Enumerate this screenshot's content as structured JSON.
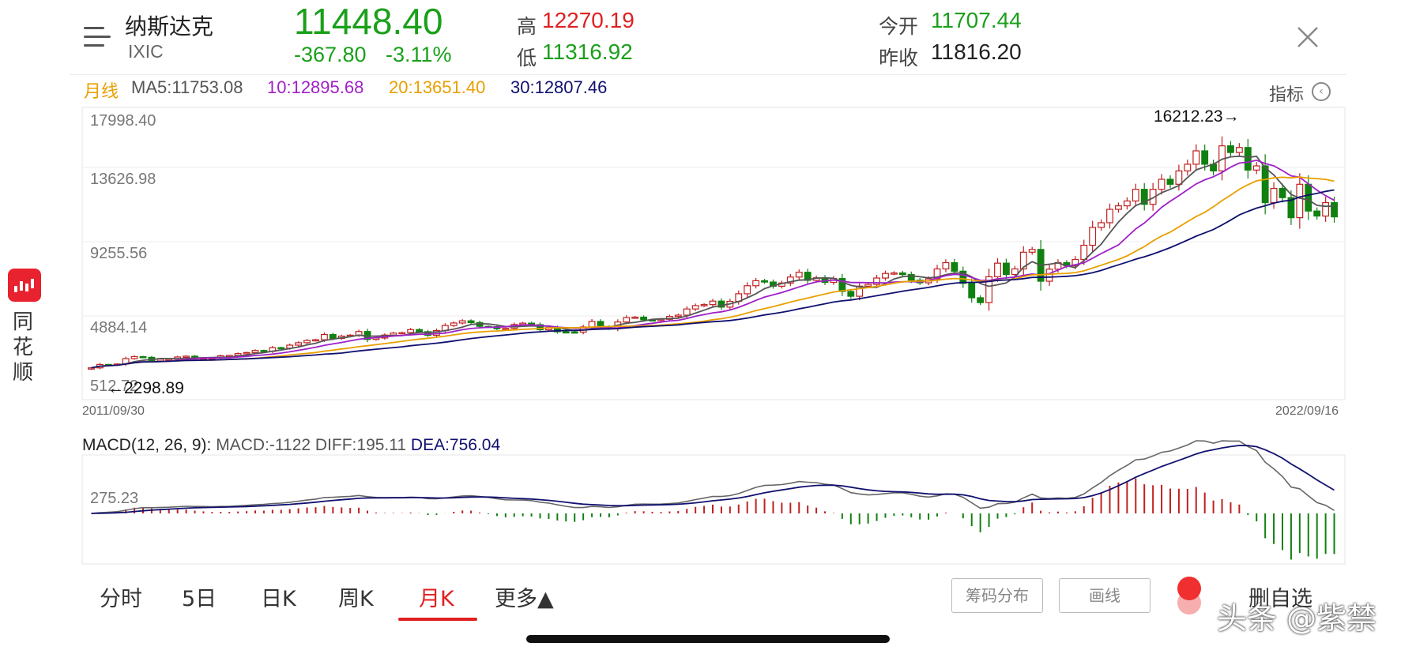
{
  "header": {
    "name": "纳斯达克",
    "code": "IXIC",
    "price": "11448.40",
    "change": "-367.80",
    "change_pct": "-3.11%",
    "high_label": "高",
    "high": "12270.19",
    "low_label": "低",
    "low": "11316.92",
    "open_label": "今开",
    "open": "11707.44",
    "prev_close_label": "昨收",
    "prev_close": "11816.20"
  },
  "ma_row": {
    "period": "月线",
    "ma5": "MA5:11753.08",
    "ma10": "10:12895.68",
    "ma20": "20:13651.40",
    "ma30": "30:12807.46",
    "indicator_label": "指标"
  },
  "app": {
    "name_chars": [
      "同",
      "花",
      "顺"
    ]
  },
  "chart_data": {
    "type": "candlestick",
    "period": "monthly",
    "y_ticks": [
      "17998.40",
      "13626.98",
      "9255.56",
      "4884.14",
      "512.72"
    ],
    "start_date": "2011/09/30",
    "end_date": "2022/09/16",
    "high_marker": "16212.23→",
    "low_marker": "←2298.89",
    "ylim": [
      512.72,
      17998.4
    ],
    "closes": [
      2415,
      2620,
      2605,
      2645,
      2970,
      3090,
      3045,
      2830,
      2935,
      2940,
      3065,
      3115,
      2975,
      3010,
      3020,
      3140,
      3160,
      3270,
      3330,
      3455,
      3400,
      3625,
      3590,
      3775,
      3920,
      4055,
      4100,
      4410,
      4175,
      4315,
      4370,
      4590,
      4115,
      4200,
      4380,
      4495,
      4525,
      4705,
      4580,
      4365,
      4645,
      4950,
      5100,
      5230,
      5125,
      4900,
      4880,
      4755,
      4780,
      5010,
      5090,
      5000,
      4695,
      4825,
      4575,
      4565,
      4555,
      4860,
      5190,
      4880,
      4770,
      5160,
      5425,
      5450,
      5290,
      5260,
      5320,
      5490,
      5570,
      5940,
      6140,
      6200,
      6410,
      6050,
      6395,
      6850,
      7330,
      7630,
      7550,
      7300,
      7490,
      7850,
      8135,
      7650,
      7805,
      7530,
      7760,
      6985,
      6700,
      7305,
      7410,
      7790,
      8065,
      8095,
      8000,
      7665,
      7505,
      7740,
      8335,
      8710,
      8200,
      7470,
      6610,
      6320,
      7870,
      8680,
      8000,
      8335,
      9335,
      9500,
      7600,
      8320,
      8710,
      8520,
      8900,
      9750,
      10820,
      11100,
      11900,
      12110,
      12400,
      13100,
      12200,
      13100,
      13700,
      13400,
      14200,
      14600,
      15400,
      14600,
      14200,
      15700,
      15300,
      15600,
      14250,
      14500,
      12300,
      13150,
      12600,
      11400,
      13400,
      11800,
      11500,
      12300,
      11450
    ],
    "series": [
      {
        "name": "MA5",
        "value": "11753.08",
        "color": "#555555"
      },
      {
        "name": "MA10",
        "value": "12895.68",
        "color": "#a020c8"
      },
      {
        "name": "MA20",
        "value": "13651.40",
        "color": "#e8a000"
      },
      {
        "name": "MA30",
        "value": "12807.46",
        "color": "#101070"
      }
    ]
  },
  "macd": {
    "label": "MACD(12, 26, 9):",
    "macd_value": "MACD:-1122",
    "diff": "DIFF:195.11",
    "dea": "DEA:756.04",
    "axis_value": "275.23"
  },
  "tabs": [
    "分时",
    "5日",
    "日K",
    "周K",
    "月K",
    "更多▲"
  ],
  "active_tab": "月K",
  "buttons": {
    "chip_dist": "筹码分布",
    "draw_line": "画线",
    "delete_fav": "删自选"
  },
  "watermark": "头条 @紫禁",
  "colors": {
    "up": "#c02020",
    "down": "#108010",
    "accent": "#e02020"
  }
}
